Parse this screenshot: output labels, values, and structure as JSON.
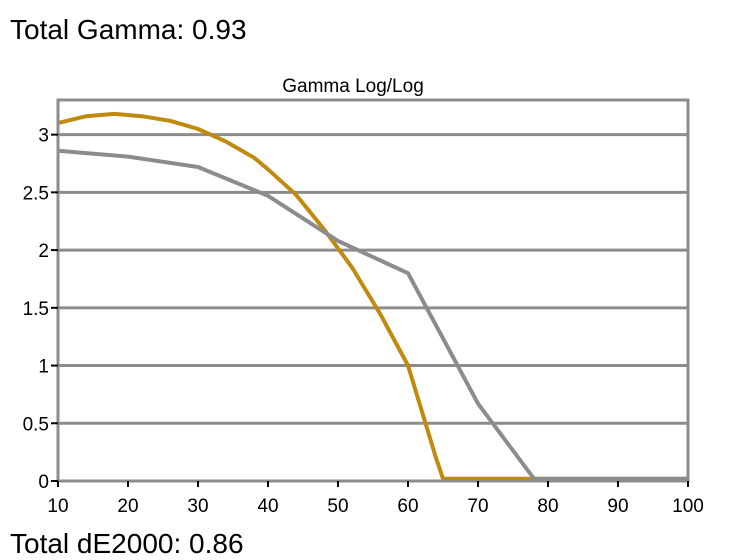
{
  "header": {
    "total_gamma": "Total Gamma: 0.93"
  },
  "footer": {
    "total_de": "Total dE2000: 0.86"
  },
  "colors": {
    "series_gold": "#C08A0E",
    "series_gray": "#8C8C8C",
    "grid": "#8C8C8C",
    "frame": "#8C8C8C"
  },
  "chart_data": {
    "type": "line",
    "title": "Gamma Log/Log",
    "xlabel": "",
    "ylabel": "",
    "xlim": [
      10,
      100
    ],
    "ylim": [
      0,
      3.3
    ],
    "x_ticks": [
      10,
      20,
      30,
      40,
      50,
      60,
      70,
      80,
      90,
      100
    ],
    "y_ticks": [
      0,
      0.5,
      1,
      1.5,
      2,
      2.5,
      3
    ],
    "y_tick_labels": [
      "0",
      "0.5",
      "1",
      "1.5",
      "2",
      "2.5",
      "3"
    ],
    "grid": "horizontal",
    "legend": "none",
    "series": [
      {
        "color": "#C08A0E",
        "x": [
          10,
          14,
          18,
          22,
          26,
          30,
          34,
          38,
          40,
          44,
          48,
          52,
          56,
          60,
          62,
          64,
          65,
          70,
          80,
          90,
          100
        ],
        "values": [
          3.1,
          3.16,
          3.18,
          3.16,
          3.12,
          3.05,
          2.94,
          2.8,
          2.7,
          2.48,
          2.18,
          1.85,
          1.45,
          1.0,
          0.6,
          0.2,
          0.02,
          0.02,
          0.02,
          0.02,
          0.02
        ]
      },
      {
        "color": "#8C8C8C",
        "x": [
          10,
          20,
          30,
          40,
          50,
          60,
          70,
          78,
          80,
          90,
          100
        ],
        "values": [
          2.86,
          2.81,
          2.72,
          2.47,
          2.08,
          1.8,
          0.67,
          0.02,
          0.02,
          0.02,
          0.02
        ]
      }
    ]
  }
}
